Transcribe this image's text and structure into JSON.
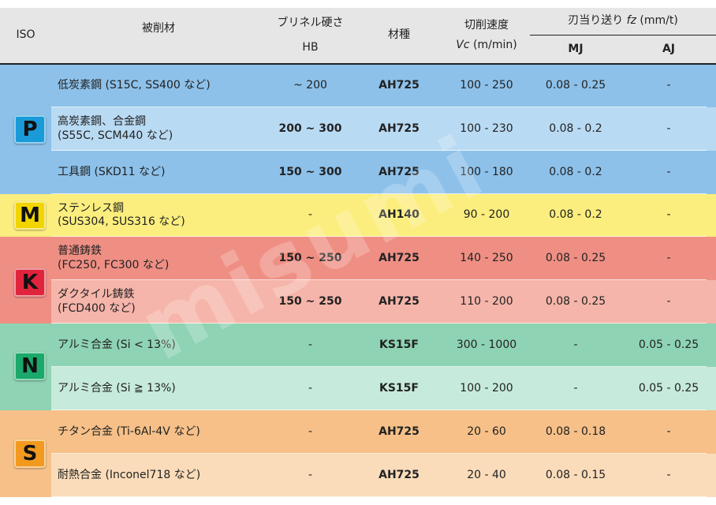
{
  "header": {
    "iso": "ISO",
    "material": "被削材",
    "hardness_line1": "ブリネル硬さ",
    "hardness_line2": "HB",
    "grade": "材種",
    "speed_line1": "切削速度",
    "speed_vc": "Vc",
    "speed_unit": " (m/min)",
    "feed_prefix": "刃当り送り ",
    "feed_fz": "fz",
    "feed_unit": " (mm/t)",
    "mj": "MJ",
    "aj": "AJ"
  },
  "groups": [
    {
      "code": "P",
      "badge_color": "#1a9ad9"
    },
    {
      "code": "M",
      "badge_color": "#f2d400"
    },
    {
      "code": "K",
      "badge_color": "#e0243b"
    },
    {
      "code": "N",
      "badge_color": "#1aa86b"
    },
    {
      "code": "S",
      "badge_color": "#f29a1f"
    }
  ],
  "rows": [
    {
      "material_line1": "低炭素鋼 (S15C, SS400 など)",
      "material_line2": "",
      "hb": "~ 200",
      "grade": "AH725",
      "vc": "100 - 250",
      "mj": "0.08 - 0.25",
      "aj": "-"
    },
    {
      "material_line1": "高炭素鋼、合金鋼",
      "material_line2": "(S55C, SCM440 など)",
      "hb": "200 ~ 300",
      "grade": "AH725",
      "vc": "100 - 230",
      "mj": "0.08 - 0.2",
      "aj": "-"
    },
    {
      "material_line1": "工具鋼 (SKD11 など)",
      "material_line2": "",
      "hb": "150 ~ 300",
      "grade": "AH725",
      "vc": "100 - 180",
      "mj": "0.08 - 0.2",
      "aj": "-"
    },
    {
      "material_line1": "ステンレス鋼",
      "material_line2": "(SUS304, SUS316 など)",
      "hb": "-",
      "grade": "AH140",
      "vc": "90 - 200",
      "mj": "0.08 - 0.2",
      "aj": "-"
    },
    {
      "material_line1": "普通鋳鉄",
      "material_line2": "(FC250, FC300 など)",
      "hb": "150 ~ 250",
      "grade": "AH725",
      "vc": "140 - 250",
      "mj": "0.08 - 0.25",
      "aj": "-"
    },
    {
      "material_line1": "ダクタイル鋳鉄",
      "material_line2": "(FCD400 など)",
      "hb": "150 ~ 250",
      "grade": "AH725",
      "vc": "110 - 200",
      "mj": "0.08 - 0.25",
      "aj": "-"
    },
    {
      "material_line1": "アルミ合金 (Si < 13%)",
      "material_line2": "",
      "hb": "-",
      "grade": "KS15F",
      "vc": "300 - 1000",
      "mj": "-",
      "aj": "0.05 - 0.25"
    },
    {
      "material_line1": "アルミ合金 (Si ≧ 13%)",
      "material_line2": "",
      "hb": "-",
      "grade": "KS15F",
      "vc": "100 - 200",
      "mj": "-",
      "aj": "0.05 - 0.25"
    },
    {
      "material_line1": "チタン合金 (Ti-6Al-4V など)",
      "material_line2": "",
      "hb": "-",
      "grade": "AH725",
      "vc": "20 - 60",
      "mj": "0.08 - 0.18",
      "aj": "-"
    },
    {
      "material_line1": "耐熱合金 (Inconel718 など)",
      "material_line2": "",
      "hb": "-",
      "grade": "AH725",
      "vc": "20 - 40",
      "mj": "0.08 - 0.15",
      "aj": "-"
    }
  ],
  "watermark": "misumi"
}
